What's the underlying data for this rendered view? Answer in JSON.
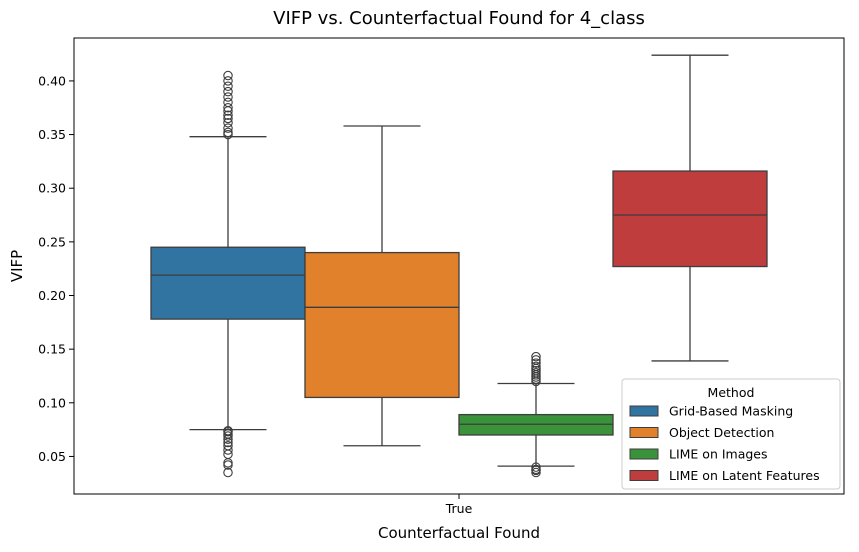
{
  "chart_data": {
    "type": "box",
    "title": "VIFP vs. Counterfactual Found for 4_class",
    "xlabel": "Counterfactual Found",
    "ylabel": "VIFP",
    "categories": [
      "True"
    ],
    "ylim": [
      0.015,
      0.44
    ],
    "yticks": [
      "0.05",
      "0.10",
      "0.15",
      "0.20",
      "0.25",
      "0.30",
      "0.35",
      "0.40"
    ],
    "legend": {
      "title": "Method",
      "position": "lower-right"
    },
    "series": [
      {
        "name": "Grid-Based Masking",
        "color": "#3274a1",
        "whisker_low": 0.075,
        "q1": 0.178,
        "median": 0.219,
        "q3": 0.245,
        "whisker_high": 0.348,
        "outliers": [
          0.035,
          0.042,
          0.044,
          0.052,
          0.056,
          0.06,
          0.063,
          0.066,
          0.069,
          0.071,
          0.073,
          0.074,
          0.35,
          0.352,
          0.356,
          0.361,
          0.365,
          0.368,
          0.372,
          0.375,
          0.38,
          0.385,
          0.39,
          0.395,
          0.4,
          0.405
        ]
      },
      {
        "name": "Object Detection",
        "color": "#e1812c",
        "whisker_low": 0.06,
        "q1": 0.105,
        "median": 0.189,
        "q3": 0.24,
        "whisker_high": 0.358,
        "outliers": []
      },
      {
        "name": "LIME on Images",
        "color": "#3a923a",
        "whisker_low": 0.041,
        "q1": 0.07,
        "median": 0.08,
        "q3": 0.089,
        "whisker_high": 0.118,
        "outliers": [
          0.035,
          0.037,
          0.038,
          0.04,
          0.12,
          0.122,
          0.124,
          0.126,
          0.128,
          0.13,
          0.132,
          0.134,
          0.137,
          0.14,
          0.143
        ]
      },
      {
        "name": "LIME on Latent Features",
        "color": "#c03d3e",
        "whisker_low": 0.139,
        "q1": 0.227,
        "median": 0.275,
        "q3": 0.316,
        "whisker_high": 0.424,
        "outliers": []
      }
    ]
  }
}
